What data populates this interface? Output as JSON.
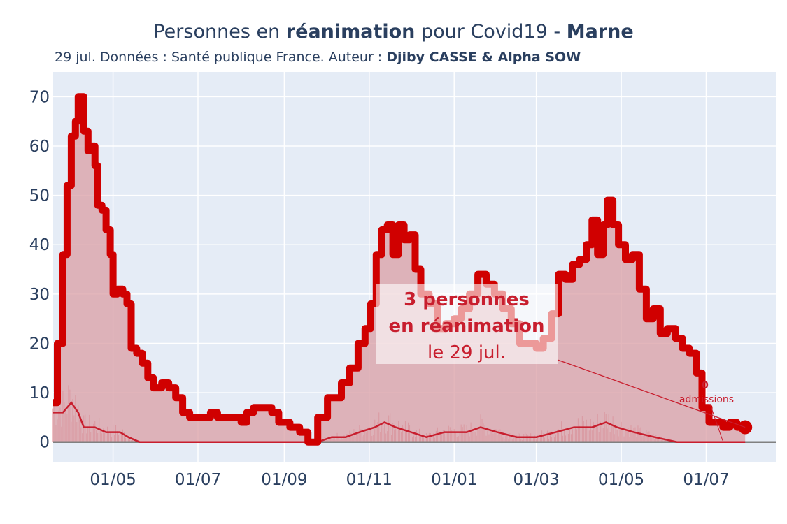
{
  "header": {
    "title_pre": "Personnes en ",
    "title_bold": "réanimation",
    "title_mid": " pour Covid19 - ",
    "title_region": "Marne",
    "subtitle_pre": "29 jul. Données : Santé publique France. Auteur : ",
    "subtitle_authors": "Djiby CASSE & Alpha SOW"
  },
  "colors": {
    "plot_bg": "#e5ecf6",
    "grid": "#ffffff",
    "main_line": "#d00000",
    "area_fill": "#dba2a8",
    "secondary_line": "#c81e2e",
    "zero_line": "#808080",
    "annotation_bg": "#f4e2e4",
    "annotation_text": "#c81e2e"
  },
  "chart_data": {
    "type": "line",
    "x_tick_labels": [
      "01/05",
      "01/07",
      "01/09",
      "01/11",
      "01/01",
      "01/03",
      "01/05",
      "01/07"
    ],
    "x_tick_dates": [
      "2020-05-01",
      "2020-07-01",
      "2020-09-01",
      "2020-11-01",
      "2021-01-01",
      "2021-03-01",
      "2021-05-01",
      "2021-07-01"
    ],
    "xlim": [
      "2020-03-19",
      "2021-08-20"
    ],
    "ylim": [
      -4,
      75
    ],
    "y_ticks": [
      0,
      10,
      20,
      30,
      40,
      50,
      60,
      70
    ],
    "grid": true,
    "series": [
      {
        "role": "reanimation",
        "points": [
          [
            "2020-03-19",
            8
          ],
          [
            "2020-03-22",
            20
          ],
          [
            "2020-03-26",
            38
          ],
          [
            "2020-03-29",
            52
          ],
          [
            "2020-04-01",
            62
          ],
          [
            "2020-04-04",
            65
          ],
          [
            "2020-04-06",
            70
          ],
          [
            "2020-04-09",
            70
          ],
          [
            "2020-04-10",
            63
          ],
          [
            "2020-04-13",
            59
          ],
          [
            "2020-04-15",
            60
          ],
          [
            "2020-04-18",
            56
          ],
          [
            "2020-04-20",
            48
          ],
          [
            "2020-04-23",
            47
          ],
          [
            "2020-04-26",
            43
          ],
          [
            "2020-04-29",
            38
          ],
          [
            "2020-05-01",
            30
          ],
          [
            "2020-05-04",
            31
          ],
          [
            "2020-05-08",
            30
          ],
          [
            "2020-05-11",
            28
          ],
          [
            "2020-05-14",
            19
          ],
          [
            "2020-05-18",
            18
          ],
          [
            "2020-05-22",
            16
          ],
          [
            "2020-05-26",
            13
          ],
          [
            "2020-05-30",
            11
          ],
          [
            "2020-06-05",
            12
          ],
          [
            "2020-06-10",
            11
          ],
          [
            "2020-06-15",
            9
          ],
          [
            "2020-06-20",
            6
          ],
          [
            "2020-06-25",
            5
          ],
          [
            "2020-07-05",
            5
          ],
          [
            "2020-07-10",
            6
          ],
          [
            "2020-07-15",
            5
          ],
          [
            "2020-07-25",
            5
          ],
          [
            "2020-08-01",
            4
          ],
          [
            "2020-08-05",
            6
          ],
          [
            "2020-08-10",
            7
          ],
          [
            "2020-08-18",
            7
          ],
          [
            "2020-08-23",
            6
          ],
          [
            "2020-08-28",
            4
          ],
          [
            "2020-09-05",
            3
          ],
          [
            "2020-09-12",
            2
          ],
          [
            "2020-09-18",
            0
          ],
          [
            "2020-09-25",
            5
          ],
          [
            "2020-10-02",
            9
          ],
          [
            "2020-10-08",
            9
          ],
          [
            "2020-10-12",
            12
          ],
          [
            "2020-10-18",
            15
          ],
          [
            "2020-10-24",
            20
          ],
          [
            "2020-10-29",
            23
          ],
          [
            "2020-11-02",
            28
          ],
          [
            "2020-11-06",
            38
          ],
          [
            "2020-11-10",
            43
          ],
          [
            "2020-11-14",
            44
          ],
          [
            "2020-11-18",
            38
          ],
          [
            "2020-11-22",
            44
          ],
          [
            "2020-11-26",
            41
          ],
          [
            "2020-11-30",
            42
          ],
          [
            "2020-12-04",
            35
          ],
          [
            "2020-12-08",
            30
          ],
          [
            "2020-12-14",
            28
          ],
          [
            "2020-12-20",
            23
          ],
          [
            "2020-12-26",
            24
          ],
          [
            "2021-01-01",
            25
          ],
          [
            "2021-01-06",
            27
          ],
          [
            "2021-01-12",
            30
          ],
          [
            "2021-01-18",
            34
          ],
          [
            "2021-01-24",
            32
          ],
          [
            "2021-01-30",
            30
          ],
          [
            "2021-02-05",
            27
          ],
          [
            "2021-02-11",
            24
          ],
          [
            "2021-02-17",
            20
          ],
          [
            "2021-02-23",
            20
          ],
          [
            "2021-03-01",
            19
          ],
          [
            "2021-03-06",
            21
          ],
          [
            "2021-03-12",
            26
          ],
          [
            "2021-03-17",
            34
          ],
          [
            "2021-03-22",
            33
          ],
          [
            "2021-03-27",
            36
          ],
          [
            "2021-04-01",
            37
          ],
          [
            "2021-04-06",
            40
          ],
          [
            "2021-04-10",
            45
          ],
          [
            "2021-04-14",
            38
          ],
          [
            "2021-04-18",
            44
          ],
          [
            "2021-04-21",
            49
          ],
          [
            "2021-04-25",
            44
          ],
          [
            "2021-04-29",
            40
          ],
          [
            "2021-05-04",
            37
          ],
          [
            "2021-05-09",
            38
          ],
          [
            "2021-05-14",
            31
          ],
          [
            "2021-05-19",
            25
          ],
          [
            "2021-05-24",
            27
          ],
          [
            "2021-05-29",
            22
          ],
          [
            "2021-06-03",
            23
          ],
          [
            "2021-06-09",
            21
          ],
          [
            "2021-06-14",
            19
          ],
          [
            "2021-06-19",
            18
          ],
          [
            "2021-06-24",
            14
          ],
          [
            "2021-06-28",
            7
          ],
          [
            "2021-07-03",
            4
          ],
          [
            "2021-07-08",
            4
          ],
          [
            "2021-07-13",
            3
          ],
          [
            "2021-07-18",
            4
          ],
          [
            "2021-07-23",
            3
          ],
          [
            "2021-07-29",
            3
          ]
        ]
      },
      {
        "role": "admissions",
        "points": [
          [
            "2020-03-19",
            6
          ],
          [
            "2020-03-26",
            6
          ],
          [
            "2020-04-01",
            8
          ],
          [
            "2020-04-06",
            6
          ],
          [
            "2020-04-10",
            3
          ],
          [
            "2020-04-18",
            3
          ],
          [
            "2020-04-26",
            2
          ],
          [
            "2020-05-06",
            2
          ],
          [
            "2020-05-12",
            1
          ],
          [
            "2020-05-20",
            0
          ],
          [
            "2020-06-05",
            0
          ],
          [
            "2020-06-20",
            0
          ],
          [
            "2020-07-10",
            0
          ],
          [
            "2020-08-10",
            0
          ],
          [
            "2020-09-10",
            0
          ],
          [
            "2020-09-25",
            0
          ],
          [
            "2020-10-05",
            1
          ],
          [
            "2020-10-15",
            1
          ],
          [
            "2020-10-25",
            2
          ],
          [
            "2020-11-05",
            3
          ],
          [
            "2020-11-12",
            4
          ],
          [
            "2020-11-20",
            3
          ],
          [
            "2020-12-01",
            2
          ],
          [
            "2020-12-12",
            1
          ],
          [
            "2020-12-25",
            2
          ],
          [
            "2021-01-10",
            2
          ],
          [
            "2021-01-20",
            3
          ],
          [
            "2021-02-01",
            2
          ],
          [
            "2021-02-15",
            1
          ],
          [
            "2021-03-01",
            1
          ],
          [
            "2021-03-15",
            2
          ],
          [
            "2021-03-28",
            3
          ],
          [
            "2021-04-10",
            3
          ],
          [
            "2021-04-20",
            4
          ],
          [
            "2021-04-28",
            3
          ],
          [
            "2021-05-10",
            2
          ],
          [
            "2021-05-25",
            1
          ],
          [
            "2021-06-10",
            0
          ],
          [
            "2021-06-25",
            0
          ],
          [
            "2021-07-10",
            0
          ],
          [
            "2021-07-29",
            0
          ]
        ]
      }
    ],
    "annotations": {
      "main_line1": "3 personnes",
      "main_line2": "en réanimation",
      "main_line3": "le 29 jul.",
      "adm_value": "0",
      "adm_label": "admissions",
      "last_value": 3,
      "last_date": "2021-07-29"
    }
  }
}
